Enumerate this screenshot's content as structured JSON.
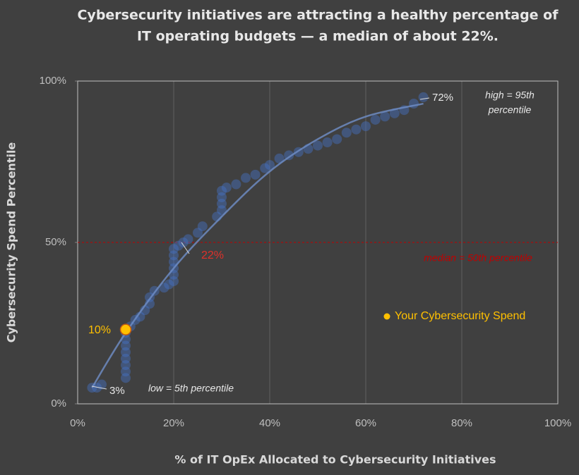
{
  "chart_data": {
    "type": "scatter",
    "title": [
      "Cybersecurity initiatives are attracting a healthy percentage of",
      "IT operating budgets — a median of about 22%."
    ],
    "x_label": "% of IT OpEx Allocated to Cybersecurity Initiatives",
    "y_label": "Cybersecurity Spend Percentile",
    "xlim": [
      0,
      100
    ],
    "ylim": [
      0,
      100
    ],
    "xticks": [
      {
        "value": 0,
        "label": "0%"
      },
      {
        "value": 20,
        "label": "20%"
      },
      {
        "value": 40,
        "label": "40%"
      },
      {
        "value": 60,
        "label": "60%"
      },
      {
        "value": 80,
        "label": "80%"
      },
      {
        "value": 100,
        "label": "100%"
      }
    ],
    "yticks": [
      {
        "value": 0,
        "label": "0%"
      },
      {
        "value": 50,
        "label": "50%"
      },
      {
        "value": 100,
        "label": "100%"
      }
    ],
    "grid": "x",
    "series": [
      {
        "color": "#4472c4",
        "x": [
          3,
          4,
          5,
          10,
          10,
          10,
          10,
          10,
          10,
          10,
          10,
          11,
          12,
          13,
          14,
          15,
          15,
          16,
          18,
          19,
          20,
          20,
          20,
          20,
          20,
          20,
          21,
          22,
          23,
          25,
          26,
          29,
          30,
          30,
          30,
          30,
          31,
          33,
          35,
          37,
          39,
          40,
          42,
          44,
          46,
          48,
          50,
          52,
          54,
          56,
          58,
          60,
          62,
          64,
          66,
          68,
          70,
          72
        ],
        "values": [
          5,
          5,
          6,
          8,
          10,
          12,
          14,
          16,
          18,
          20,
          22,
          24,
          26,
          27,
          29,
          31,
          33,
          35,
          36,
          37,
          38,
          40,
          42,
          44,
          46,
          48,
          49,
          50,
          51,
          53,
          55,
          58,
          60,
          62,
          64,
          66,
          67,
          68,
          70,
          71,
          73,
          74,
          76,
          77,
          78,
          79,
          80,
          81,
          82,
          84,
          85,
          86,
          88,
          89,
          90,
          91,
          93,
          95
        ]
      },
      {
        "name": "Your Cybersecurity Spend",
        "color": "#ffc000",
        "x": [
          10
        ],
        "values": [
          23
        ]
      }
    ],
    "trendline": {
      "color": "#6f8fc8",
      "x": [
        3,
        10,
        20,
        30,
        40,
        50,
        60,
        72
      ],
      "values": [
        5,
        22,
        42,
        58,
        72,
        82,
        89,
        93
      ]
    },
    "median_line": {
      "value": 50,
      "color": "#c00000"
    },
    "annotations": [
      {
        "text": "72%",
        "color": "#e8e8e8"
      },
      {
        "text": [
          "high = 95th",
          "percentile"
        ],
        "color": "#e8e8e8"
      },
      {
        "text": "3%",
        "color": "#e8e8e8"
      },
      {
        "text": "low = 5th percentile",
        "color": "#e8e8e8"
      },
      {
        "text": "22%",
        "color": "#e0302a"
      },
      {
        "text": "median = 50th percentile",
        "color": "#c00000"
      },
      {
        "text": "10%",
        "color": "#ffc000"
      }
    ],
    "legend": "inside-right"
  }
}
